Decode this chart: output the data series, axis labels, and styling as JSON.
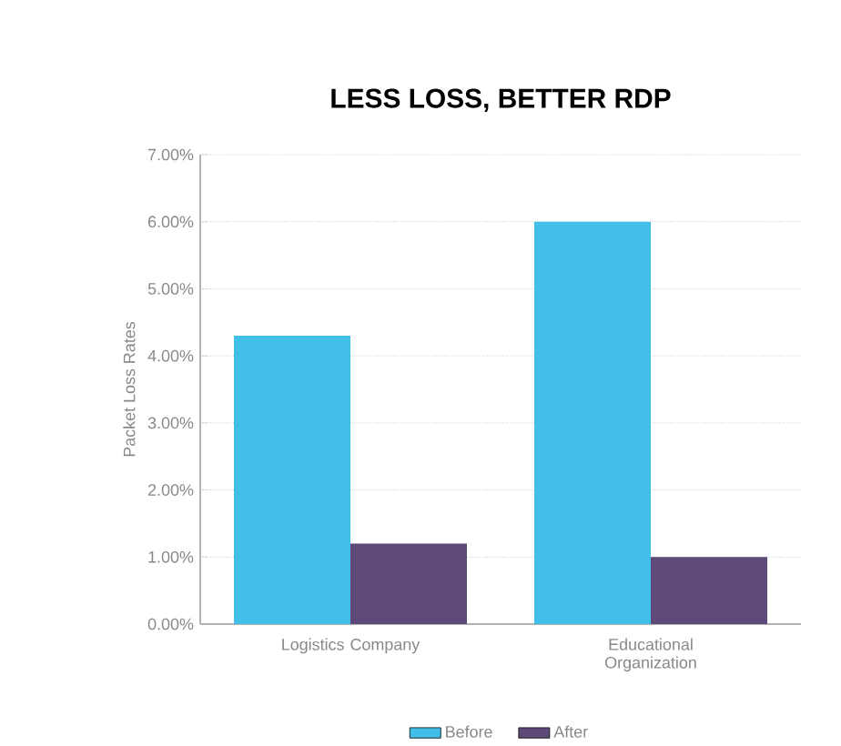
{
  "chart_data": {
    "type": "bar",
    "title": "LESS LOSS, BETTER RDP",
    "ylabel": "Packet Loss Rates",
    "categories": [
      "Logistics Company",
      "Educational Organization"
    ],
    "series": [
      {
        "name": "Before",
        "color": "#41bfe8",
        "values": [
          4.3,
          6.0
        ]
      },
      {
        "name": "After",
        "color": "#5e4a78",
        "values": [
          1.2,
          1.0
        ]
      }
    ],
    "ylim": [
      0,
      7
    ],
    "yticks": [
      {
        "value": 0,
        "label": "0.00%"
      },
      {
        "value": 1,
        "label": "1.00%"
      },
      {
        "value": 2,
        "label": "2.00%"
      },
      {
        "value": 3,
        "label": "3.00%"
      },
      {
        "value": 4,
        "label": "4.00%"
      },
      {
        "value": 5,
        "label": "5.00%"
      },
      {
        "value": 6,
        "label": "6.00%"
      },
      {
        "value": 7,
        "label": "7.00%"
      }
    ],
    "grid": "y",
    "legend": "bottom"
  }
}
